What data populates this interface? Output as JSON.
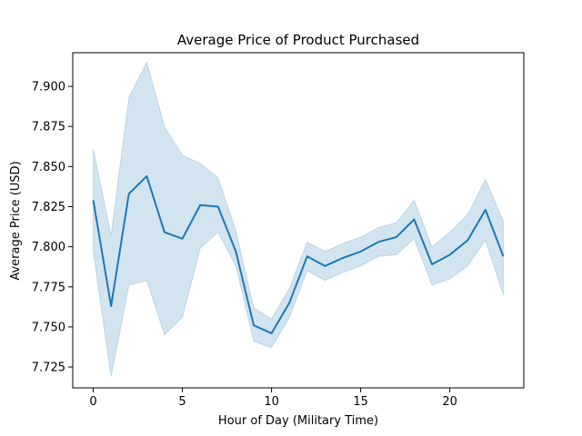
{
  "chart_data": {
    "type": "line",
    "title": "Average Price of Product Purchased",
    "xlabel": "Hour of Day (Military Time)",
    "ylabel": "Average Price (USD)",
    "xlim": [
      -1.15,
      24.15
    ],
    "ylim": [
      7.712,
      7.921
    ],
    "xticks": [
      0,
      5,
      10,
      15,
      20
    ],
    "xtick_labels": [
      "0",
      "5",
      "10",
      "15",
      "20"
    ],
    "yticks": [
      7.725,
      7.75,
      7.775,
      7.8,
      7.825,
      7.85,
      7.875,
      7.9
    ],
    "ytick_labels": [
      "7.725",
      "7.750",
      "7.775",
      "7.800",
      "7.825",
      "7.850",
      "7.875",
      "7.900"
    ],
    "grid": false,
    "colors": {
      "line": "#1f77b4",
      "band": "#1f77b4"
    },
    "series": [
      {
        "x": [
          0,
          1,
          2,
          3,
          4,
          5,
          6,
          7,
          8,
          9,
          10,
          11,
          12,
          13,
          14,
          15,
          16,
          17,
          18,
          19,
          20,
          21,
          22,
          23
        ],
        "values": [
          7.829,
          7.763,
          7.833,
          7.844,
          7.809,
          7.805,
          7.826,
          7.825,
          7.797,
          7.751,
          7.746,
          7.765,
          7.794,
          7.788,
          7.793,
          7.797,
          7.803,
          7.806,
          7.817,
          7.789,
          7.795,
          7.804,
          7.823,
          7.794
        ],
        "ci_upper": [
          7.861,
          7.807,
          7.893,
          7.915,
          7.875,
          7.857,
          7.852,
          7.843,
          7.81,
          7.762,
          7.755,
          7.774,
          7.803,
          7.797,
          7.802,
          7.806,
          7.812,
          7.815,
          7.829,
          7.8,
          7.809,
          7.82,
          7.842,
          7.816
        ],
        "ci_lower": [
          7.797,
          7.719,
          7.776,
          7.779,
          7.745,
          7.756,
          7.799,
          7.809,
          7.788,
          7.741,
          7.737,
          7.756,
          7.785,
          7.779,
          7.784,
          7.788,
          7.794,
          7.795,
          7.805,
          7.776,
          7.78,
          7.788,
          7.804,
          7.77
        ]
      }
    ]
  }
}
